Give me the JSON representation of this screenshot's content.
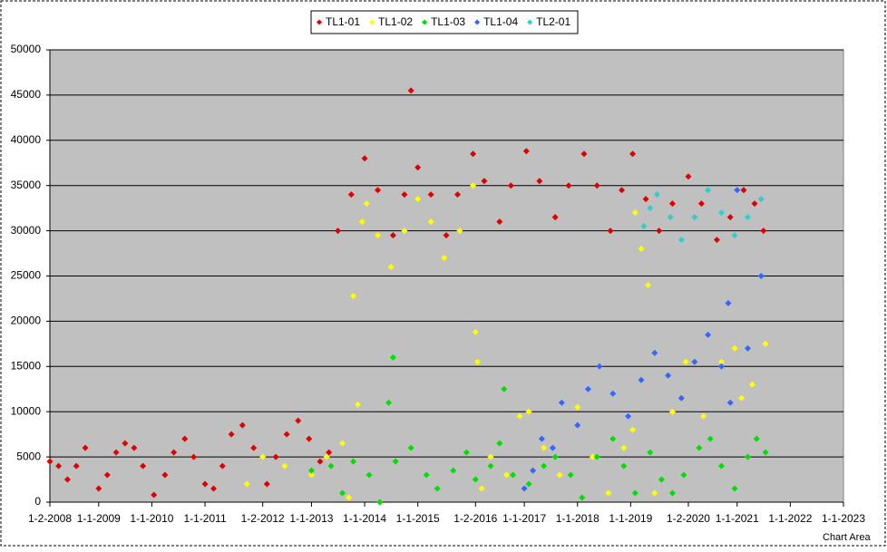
{
  "chart_data": {
    "type": "scatter",
    "legend": "top",
    "annotation": "Chart Area",
    "grid": true,
    "background": "#c0c0c0",
    "ylim": [
      0,
      50000
    ],
    "yticks": [
      0,
      5000,
      10000,
      15000,
      20000,
      25000,
      30000,
      35000,
      40000,
      45000,
      50000
    ],
    "xlim": [
      "2008-02-01",
      "2023-01-01"
    ],
    "xticks": [
      {
        "value": "2008-02-01",
        "label": "1-2-2008"
      },
      {
        "value": "2009-01-01",
        "label": "1-1-2009"
      },
      {
        "value": "2010-01-01",
        "label": "1-1-2010"
      },
      {
        "value": "2011-01-01",
        "label": "1-1-2011"
      },
      {
        "value": "2012-02-01",
        "label": "1-2-2012"
      },
      {
        "value": "2013-01-01",
        "label": "1-1-2013"
      },
      {
        "value": "2014-01-01",
        "label": "1-1-2014"
      },
      {
        "value": "2015-01-01",
        "label": "1-1-2015"
      },
      {
        "value": "2016-02-01",
        "label": "1-2-2016"
      },
      {
        "value": "2017-01-01",
        "label": "1-1-2017"
      },
      {
        "value": "2018-01-01",
        "label": "1-1-2018"
      },
      {
        "value": "2019-01-01",
        "label": "1-1-2019"
      },
      {
        "value": "2020-02-01",
        "label": "1-2-2020"
      },
      {
        "value": "2021-01-01",
        "label": "1-1-2021"
      },
      {
        "value": "2022-01-01",
        "label": "1-1-2022"
      },
      {
        "value": "2023-01-01",
        "label": "1-1-2023"
      }
    ],
    "series": [
      {
        "name": "TL1-01",
        "color": "#e00000",
        "x": [
          "2008-02-01",
          "2008-04-01",
          "2008-06-01",
          "2008-08-01",
          "2008-10-01",
          "2009-01-01",
          "2009-03-01",
          "2009-05-01",
          "2009-07-01",
          "2009-09-01",
          "2009-11-01",
          "2010-01-15",
          "2010-04-01",
          "2010-06-01",
          "2010-08-15",
          "2010-10-15",
          "2011-01-01",
          "2011-03-01",
          "2011-05-01",
          "2011-07-01",
          "2011-09-15",
          "2011-12-01",
          "2012-03-01",
          "2012-05-01",
          "2012-07-15",
          "2012-10-01",
          "2012-12-15",
          "2013-03-01",
          "2013-05-01",
          "2013-07-01",
          "2013-10-01",
          "2014-01-01",
          "2014-04-01",
          "2014-07-15",
          "2014-10-01",
          "2014-11-15",
          "2015-01-01",
          "2015-04-01",
          "2015-07-15",
          "2015-10-01",
          "2016-01-15",
          "2016-04-01",
          "2016-07-15",
          "2016-10-01",
          "2017-01-15",
          "2017-04-15",
          "2017-08-01",
          "2017-11-01",
          "2018-02-15",
          "2018-05-15",
          "2018-08-15",
          "2018-11-01",
          "2019-01-15",
          "2019-04-15",
          "2019-07-15",
          "2019-10-15",
          "2020-02-01",
          "2020-05-01",
          "2020-08-15",
          "2020-11-15",
          "2021-02-15",
          "2021-05-01",
          "2021-07-01"
        ],
        "values": [
          4500,
          4000,
          2500,
          4000,
          6000,
          1500,
          3000,
          5500,
          6500,
          6000,
          4000,
          800,
          3000,
          5500,
          7000,
          5000,
          2000,
          1500,
          4000,
          7500,
          8500,
          6000,
          2000,
          5000,
          7500,
          9000,
          7000,
          4500,
          5500,
          30000,
          34000,
          38000,
          34500,
          29500,
          34000,
          45500,
          37000,
          34000,
          29500,
          34000,
          38500,
          35500,
          31000,
          35000,
          38800,
          35500,
          31500,
          35000,
          38500,
          35000,
          30000,
          34500,
          38500,
          33500,
          30000,
          33000,
          36000,
          33000,
          29000,
          31500,
          34500,
          33000,
          30000
        ]
      },
      {
        "name": "TL1-02",
        "color": "#ffff00",
        "x": [
          "2011-10-15",
          "2012-02-01",
          "2012-07-01",
          "2013-01-01",
          "2013-04-15",
          "2013-08-01",
          "2013-09-15",
          "2013-10-15",
          "2013-11-15",
          "2013-12-15",
          "2014-01-15",
          "2014-04-01",
          "2014-07-01",
          "2014-10-01",
          "2015-01-01",
          "2015-04-01",
          "2015-07-01",
          "2015-10-15",
          "2016-01-15",
          "2016-02-01",
          "2016-02-15",
          "2016-03-15",
          "2016-05-15",
          "2016-09-01",
          "2016-12-01",
          "2017-02-01",
          "2017-05-15",
          "2017-09-01",
          "2018-01-01",
          "2018-04-15",
          "2018-08-01",
          "2018-11-15",
          "2019-01-15",
          "2019-02-01",
          "2019-03-15",
          "2019-05-01",
          "2019-06-15",
          "2019-10-15",
          "2020-01-15",
          "2020-05-15",
          "2020-09-15",
          "2020-12-15",
          "2021-02-01",
          "2021-04-15",
          "2021-07-15"
        ],
        "values": [
          2000,
          5000,
          4000,
          3000,
          5000,
          6500,
          500,
          22800,
          10800,
          31000,
          33000,
          29500,
          26000,
          30000,
          33500,
          31000,
          27000,
          30000,
          35000,
          18800,
          15500,
          1500,
          5000,
          3000,
          9500,
          10000,
          6000,
          3000,
          10500,
          5000,
          1000,
          6000,
          8000,
          32000,
          28000,
          24000,
          1000,
          10000,
          15500,
          9500,
          15500,
          17000,
          11500,
          13000,
          17500
        ]
      },
      {
        "name": "TL1-03",
        "color": "#00e000",
        "x": [
          "2013-01-01",
          "2013-05-15",
          "2013-08-01",
          "2013-10-15",
          "2014-02-01",
          "2014-04-15",
          "2014-06-15",
          "2014-07-15",
          "2014-08-01",
          "2014-11-15",
          "2015-03-01",
          "2015-05-15",
          "2015-09-01",
          "2015-12-01",
          "2016-02-01",
          "2016-05-15",
          "2016-07-15",
          "2016-08-15",
          "2016-10-15",
          "2017-02-01",
          "2017-05-15",
          "2017-08-01",
          "2017-11-15",
          "2018-02-01",
          "2018-05-15",
          "2018-09-01",
          "2018-11-15",
          "2019-02-01",
          "2019-05-15",
          "2019-08-01",
          "2019-10-15",
          "2020-01-01",
          "2020-04-15",
          "2020-07-01",
          "2020-09-15",
          "2020-12-15",
          "2021-03-15",
          "2021-05-15",
          "2021-07-15"
        ],
        "values": [
          3500,
          4000,
          1000,
          4500,
          3000,
          0,
          11000,
          16000,
          4500,
          6000,
          3000,
          1500,
          3500,
          5500,
          2500,
          4000,
          6500,
          12500,
          3000,
          2000,
          4000,
          5000,
          3000,
          500,
          5000,
          7000,
          4000,
          1000,
          5500,
          2500,
          1000,
          3000,
          6000,
          7000,
          4000,
          1500,
          5000,
          7000,
          5500
        ]
      },
      {
        "name": "TL1-04",
        "color": "#3366ff",
        "x": [
          "2017-01-01",
          "2017-03-01",
          "2017-05-01",
          "2017-07-15",
          "2017-09-15",
          "2018-01-01",
          "2018-03-15",
          "2018-06-01",
          "2018-09-01",
          "2018-12-15",
          "2019-03-15",
          "2019-06-15",
          "2019-09-15",
          "2019-12-15",
          "2020-03-15",
          "2020-06-15",
          "2020-09-15",
          "2020-11-01",
          "2020-11-15",
          "2021-01-01",
          "2021-03-15",
          "2021-06-15"
        ],
        "values": [
          1500,
          3500,
          7000,
          6000,
          11000,
          8500,
          12500,
          15000,
          12000,
          9500,
          13500,
          16500,
          14000,
          11500,
          15500,
          18500,
          15000,
          22000,
          11000,
          34500,
          17000,
          25000
        ]
      },
      {
        "name": "TL2-01",
        "color": "#33cccc",
        "x": [
          "2019-04-01",
          "2019-05-15",
          "2019-07-01",
          "2019-10-01",
          "2019-12-15",
          "2020-03-15",
          "2020-06-15",
          "2020-09-15",
          "2020-12-15",
          "2021-03-15",
          "2021-06-15"
        ],
        "values": [
          30500,
          32500,
          34000,
          31500,
          29000,
          31500,
          34500,
          32000,
          29500,
          31500,
          33500
        ]
      }
    ]
  }
}
